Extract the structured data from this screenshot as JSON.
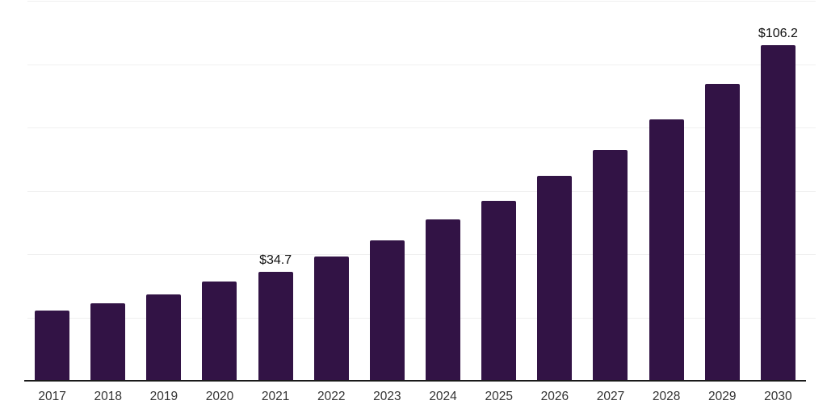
{
  "chart_data": {
    "type": "bar",
    "title": "",
    "xlabel": "",
    "ylabel": "",
    "categories": [
      "2017",
      "2018",
      "2019",
      "2020",
      "2021",
      "2022",
      "2023",
      "2024",
      "2025",
      "2026",
      "2027",
      "2028",
      "2029",
      "2030"
    ],
    "values": [
      22.4,
      24.8,
      27.6,
      31.6,
      34.7,
      39.5,
      44.7,
      51.2,
      57.2,
      64.9,
      73.2,
      82.9,
      94.0,
      106.2
    ],
    "data_labels": {
      "2021": "$34.7",
      "2030": "$106.2"
    },
    "ylim": [
      0,
      120
    ],
    "gridline_step": 20,
    "grid": true,
    "legend_position": "none",
    "colors": {
      "bar": "#321345",
      "gridline": "#f0f0f0",
      "axis_line": "#1a1a1a",
      "value_label": "#111111",
      "tick_label": "#333333",
      "background": "#ffffff"
    }
  }
}
